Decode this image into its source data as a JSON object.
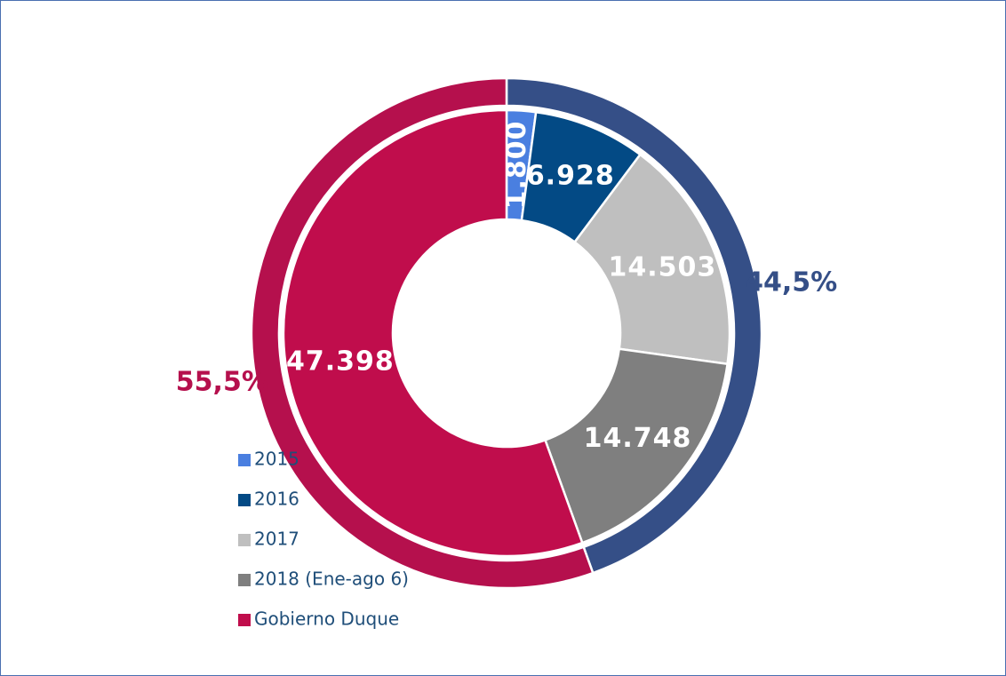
{
  "chart_data": {
    "type": "donut",
    "categories": [
      "2015",
      "2016",
      "2017",
      "2018 (Ene-ago 6)",
      "Gobierno Duque"
    ],
    "values": [
      1800,
      6928,
      14503,
      14748,
      47398
    ],
    "value_labels": [
      "1.800",
      "6.928",
      "14.503",
      "14.748",
      "47.398"
    ],
    "colors": [
      "#4a7fe0",
      "#034a85",
      "#bfbfbf",
      "#7f7f7f",
      "#c00d4c"
    ],
    "outer": {
      "values": [
        44.5,
        55.5
      ],
      "value_labels": [
        "44,5%",
        "55,5%"
      ],
      "colors": [
        "#354f87",
        "#b5104d"
      ]
    },
    "legend": "left"
  }
}
